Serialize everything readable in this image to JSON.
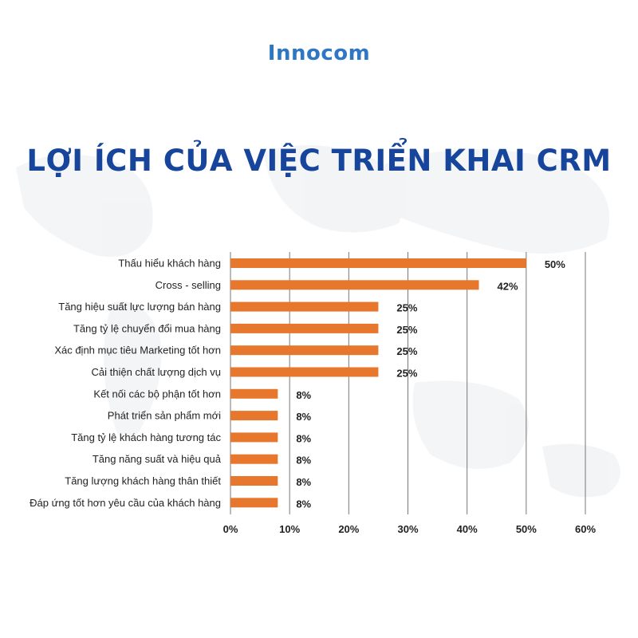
{
  "brand": {
    "logo_text": "Innocom"
  },
  "page": {
    "title": "LỢI ÍCH CỦA VIỆC TRIỂN KHAI CRM"
  },
  "colors": {
    "bar": "#e8772e",
    "title": "#16459b",
    "logo": "#2f76c5",
    "grid": "#777777",
    "text": "#222222"
  },
  "chart_data": {
    "type": "bar",
    "orientation": "horizontal",
    "categories": [
      "Thấu hiểu khách hàng",
      "Cross - selling",
      "Tăng hiệu suất lực lượng bán hàng",
      "Tăng tỷ lệ chuyển đổi mua hàng",
      "Xác định mục tiêu Marketing tốt hơn",
      "Cải thiện chất lượng dịch vụ",
      "Kết nối các bộ phận tốt hơn",
      "Phát triển sản phẩm mới",
      "Tăng tỷ lệ khách hàng tương tác",
      "Tăng năng suất và hiệu quả",
      "Tăng lượng khách hàng thân thiết",
      "Đáp ứng tốt hơn yêu cầu của khách hàng"
    ],
    "values": [
      50,
      42,
      25,
      25,
      25,
      25,
      8,
      8,
      8,
      8,
      8,
      8
    ],
    "value_labels": [
      "50%",
      "42%",
      "25%",
      "25%",
      "25%",
      "25%",
      "8%",
      "8%",
      "8%",
      "8%",
      "8%",
      "8%"
    ],
    "xlim": [
      0,
      60
    ],
    "x_ticks": [
      "0%",
      "10%",
      "20%",
      "30%",
      "40%",
      "50%",
      "60%"
    ],
    "grid": true
  }
}
